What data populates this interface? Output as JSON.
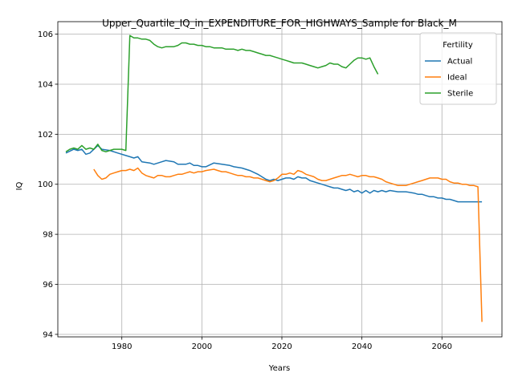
{
  "chart_data": {
    "type": "line",
    "title": "Upper_Quartile_IQ_in_EXPENDITURE_FOR_HIGHWAYS_Sample for Black_M",
    "xlabel": "Years",
    "ylabel": "IQ",
    "xlim": [
      1964,
      2075
    ],
    "ylim": [
      93.9,
      106.5
    ],
    "xticks": [
      1980,
      2000,
      2020,
      2040,
      2060
    ],
    "yticks": [
      94,
      96,
      98,
      100,
      102,
      104,
      106
    ],
    "grid": true,
    "legend": {
      "title": "Fertility",
      "position": "top-right"
    },
    "series": [
      {
        "name": "Actual",
        "color": "#1f77b4",
        "points": [
          [
            1966,
            101.25
          ],
          [
            1968,
            101.4
          ],
          [
            1969,
            101.35
          ],
          [
            1970,
            101.4
          ],
          [
            1971,
            101.2
          ],
          [
            1972,
            101.25
          ],
          [
            1974,
            101.55
          ],
          [
            1975,
            101.4
          ],
          [
            1977,
            101.35
          ],
          [
            1979,
            101.25
          ],
          [
            1981,
            101.15
          ],
          [
            1982,
            101.1
          ],
          [
            1983,
            101.05
          ],
          [
            1984,
            101.1
          ],
          [
            1985,
            100.9
          ],
          [
            1987,
            100.85
          ],
          [
            1988,
            100.8
          ],
          [
            1990,
            100.9
          ],
          [
            1991,
            100.95
          ],
          [
            1993,
            100.9
          ],
          [
            1994,
            100.8
          ],
          [
            1996,
            100.8
          ],
          [
            1997,
            100.85
          ],
          [
            1998,
            100.75
          ],
          [
            1999,
            100.75
          ],
          [
            2000,
            100.7
          ],
          [
            2001,
            100.7
          ],
          [
            2003,
            100.85
          ],
          [
            2005,
            100.8
          ],
          [
            2007,
            100.75
          ],
          [
            2008,
            100.7
          ],
          [
            2010,
            100.65
          ],
          [
            2012,
            100.55
          ],
          [
            2014,
            100.4
          ],
          [
            2015,
            100.3
          ],
          [
            2016,
            100.2
          ],
          [
            2017,
            100.15
          ],
          [
            2018,
            100.2
          ],
          [
            2019,
            100.15
          ],
          [
            2020,
            100.2
          ],
          [
            2021,
            100.25
          ],
          [
            2022,
            100.25
          ],
          [
            2023,
            100.2
          ],
          [
            2024,
            100.3
          ],
          [
            2025,
            100.25
          ],
          [
            2026,
            100.25
          ],
          [
            2027,
            100.15
          ],
          [
            2028,
            100.1
          ],
          [
            2029,
            100.05
          ],
          [
            2030,
            100.0
          ],
          [
            2031,
            99.95
          ],
          [
            2032,
            99.9
          ],
          [
            2033,
            99.85
          ],
          [
            2034,
            99.85
          ],
          [
            2035,
            99.8
          ],
          [
            2036,
            99.75
          ],
          [
            2037,
            99.8
          ],
          [
            2038,
            99.7
          ],
          [
            2039,
            99.75
          ],
          [
            2040,
            99.65
          ],
          [
            2041,
            99.75
          ],
          [
            2042,
            99.65
          ],
          [
            2043,
            99.75
          ],
          [
            2044,
            99.7
          ],
          [
            2045,
            99.75
          ],
          [
            2046,
            99.7
          ],
          [
            2047,
            99.75
          ],
          [
            2049,
            99.7
          ],
          [
            2051,
            99.7
          ],
          [
            2053,
            99.65
          ],
          [
            2054,
            99.6
          ],
          [
            2055,
            99.6
          ],
          [
            2056,
            99.55
          ],
          [
            2057,
            99.5
          ],
          [
            2058,
            99.5
          ],
          [
            2059,
            99.45
          ],
          [
            2060,
            99.45
          ],
          [
            2061,
            99.4
          ],
          [
            2062,
            99.4
          ],
          [
            2063,
            99.35
          ],
          [
            2064,
            99.3
          ],
          [
            2065,
            99.3
          ],
          [
            2066,
            99.3
          ],
          [
            2067,
            99.3
          ],
          [
            2068,
            99.3
          ],
          [
            2069,
            99.3
          ],
          [
            2070,
            99.3
          ]
        ]
      },
      {
        "name": "Ideal",
        "color": "#ff7f0e",
        "points": [
          [
            1973,
            100.6
          ],
          [
            1974,
            100.35
          ],
          [
            1975,
            100.2
          ],
          [
            1976,
            100.25
          ],
          [
            1977,
            100.4
          ],
          [
            1978,
            100.45
          ],
          [
            1979,
            100.5
          ],
          [
            1980,
            100.55
          ],
          [
            1981,
            100.55
          ],
          [
            1982,
            100.6
          ],
          [
            1983,
            100.55
          ],
          [
            1984,
            100.65
          ],
          [
            1985,
            100.45
          ],
          [
            1986,
            100.35
          ],
          [
            1987,
            100.3
          ],
          [
            1988,
            100.25
          ],
          [
            1989,
            100.35
          ],
          [
            1990,
            100.35
          ],
          [
            1991,
            100.3
          ],
          [
            1992,
            100.3
          ],
          [
            1993,
            100.35
          ],
          [
            1994,
            100.4
          ],
          [
            1995,
            100.4
          ],
          [
            1996,
            100.45
          ],
          [
            1997,
            100.5
          ],
          [
            1998,
            100.45
          ],
          [
            1999,
            100.5
          ],
          [
            2000,
            100.5
          ],
          [
            2001,
            100.55
          ],
          [
            2003,
            100.6
          ],
          [
            2004,
            100.55
          ],
          [
            2005,
            100.5
          ],
          [
            2006,
            100.5
          ],
          [
            2007,
            100.45
          ],
          [
            2008,
            100.4
          ],
          [
            2009,
            100.35
          ],
          [
            2010,
            100.35
          ],
          [
            2011,
            100.3
          ],
          [
            2012,
            100.3
          ],
          [
            2013,
            100.25
          ],
          [
            2014,
            100.25
          ],
          [
            2015,
            100.2
          ],
          [
            2016,
            100.15
          ],
          [
            2017,
            100.1
          ],
          [
            2018,
            100.15
          ],
          [
            2019,
            100.25
          ],
          [
            2020,
            100.4
          ],
          [
            2021,
            100.4
          ],
          [
            2022,
            100.45
          ],
          [
            2023,
            100.4
          ],
          [
            2024,
            100.55
          ],
          [
            2025,
            100.5
          ],
          [
            2026,
            100.4
          ],
          [
            2027,
            100.35
          ],
          [
            2028,
            100.3
          ],
          [
            2029,
            100.2
          ],
          [
            2030,
            100.15
          ],
          [
            2031,
            100.15
          ],
          [
            2032,
            100.2
          ],
          [
            2033,
            100.25
          ],
          [
            2034,
            100.3
          ],
          [
            2035,
            100.35
          ],
          [
            2036,
            100.35
          ],
          [
            2037,
            100.4
          ],
          [
            2038,
            100.35
          ],
          [
            2039,
            100.3
          ],
          [
            2040,
            100.35
          ],
          [
            2041,
            100.35
          ],
          [
            2042,
            100.3
          ],
          [
            2043,
            100.3
          ],
          [
            2044,
            100.25
          ],
          [
            2045,
            100.2
          ],
          [
            2046,
            100.1
          ],
          [
            2047,
            100.05
          ],
          [
            2048,
            100.0
          ],
          [
            2049,
            99.95
          ],
          [
            2050,
            99.95
          ],
          [
            2051,
            99.95
          ],
          [
            2052,
            100.0
          ],
          [
            2053,
            100.05
          ],
          [
            2054,
            100.1
          ],
          [
            2055,
            100.15
          ],
          [
            2056,
            100.2
          ],
          [
            2057,
            100.25
          ],
          [
            2058,
            100.25
          ],
          [
            2059,
            100.25
          ],
          [
            2060,
            100.2
          ],
          [
            2061,
            100.2
          ],
          [
            2062,
            100.1
          ],
          [
            2063,
            100.05
          ],
          [
            2064,
            100.05
          ],
          [
            2065,
            100.0
          ],
          [
            2066,
            100.0
          ],
          [
            2067,
            99.95
          ],
          [
            2068,
            99.95
          ],
          [
            2069,
            99.9
          ],
          [
            2070,
            94.5
          ]
        ]
      },
      {
        "name": "Sterile",
        "color": "#2ca02c",
        "points": [
          [
            1966,
            101.3
          ],
          [
            1967,
            101.4
          ],
          [
            1968,
            101.45
          ],
          [
            1969,
            101.4
          ],
          [
            1970,
            101.55
          ],
          [
            1971,
            101.4
          ],
          [
            1972,
            101.45
          ],
          [
            1973,
            101.4
          ],
          [
            1974,
            101.6
          ],
          [
            1975,
            101.35
          ],
          [
            1976,
            101.3
          ],
          [
            1977,
            101.35
          ],
          [
            1978,
            101.4
          ],
          [
            1979,
            101.4
          ],
          [
            1980,
            101.4
          ],
          [
            1981,
            101.35
          ],
          [
            1982,
            105.95
          ],
          [
            1983,
            105.85
          ],
          [
            1984,
            105.85
          ],
          [
            1985,
            105.8
          ],
          [
            1986,
            105.8
          ],
          [
            1987,
            105.75
          ],
          [
            1988,
            105.6
          ],
          [
            1989,
            105.5
          ],
          [
            1990,
            105.45
          ],
          [
            1991,
            105.5
          ],
          [
            1992,
            105.5
          ],
          [
            1993,
            105.5
          ],
          [
            1994,
            105.55
          ],
          [
            1995,
            105.65
          ],
          [
            1996,
            105.65
          ],
          [
            1997,
            105.6
          ],
          [
            1998,
            105.6
          ],
          [
            1999,
            105.55
          ],
          [
            2000,
            105.55
          ],
          [
            2001,
            105.5
          ],
          [
            2002,
            105.5
          ],
          [
            2003,
            105.45
          ],
          [
            2004,
            105.45
          ],
          [
            2005,
            105.45
          ],
          [
            2006,
            105.4
          ],
          [
            2007,
            105.4
          ],
          [
            2008,
            105.4
          ],
          [
            2009,
            105.35
          ],
          [
            2010,
            105.4
          ],
          [
            2011,
            105.35
          ],
          [
            2012,
            105.35
          ],
          [
            2013,
            105.3
          ],
          [
            2014,
            105.25
          ],
          [
            2015,
            105.2
          ],
          [
            2016,
            105.15
          ],
          [
            2017,
            105.15
          ],
          [
            2018,
            105.1
          ],
          [
            2019,
            105.05
          ],
          [
            2020,
            105.0
          ],
          [
            2021,
            104.95
          ],
          [
            2022,
            104.9
          ],
          [
            2023,
            104.85
          ],
          [
            2024,
            104.85
          ],
          [
            2025,
            104.85
          ],
          [
            2026,
            104.8
          ],
          [
            2027,
            104.75
          ],
          [
            2028,
            104.7
          ],
          [
            2029,
            104.65
          ],
          [
            2030,
            104.7
          ],
          [
            2031,
            104.75
          ],
          [
            2032,
            104.85
          ],
          [
            2033,
            104.8
          ],
          [
            2034,
            104.8
          ],
          [
            2035,
            104.7
          ],
          [
            2036,
            104.65
          ],
          [
            2037,
            104.8
          ],
          [
            2038,
            104.95
          ],
          [
            2039,
            105.05
          ],
          [
            2040,
            105.05
          ],
          [
            2041,
            105.0
          ],
          [
            2042,
            105.05
          ],
          [
            2043,
            104.7
          ],
          [
            2044,
            104.4
          ]
        ]
      }
    ]
  }
}
